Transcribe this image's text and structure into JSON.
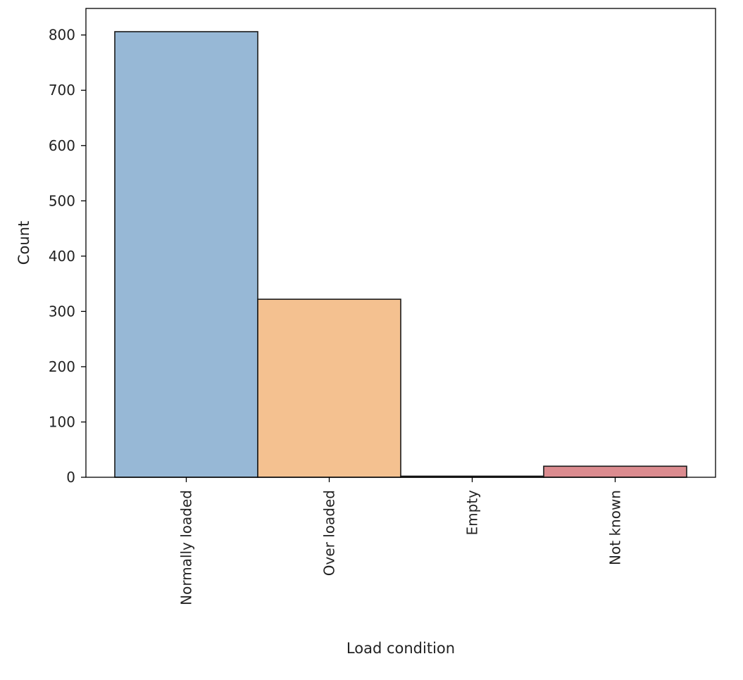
{
  "chart_data": {
    "type": "bar",
    "title": "",
    "xlabel": "Load condition",
    "ylabel": "Count",
    "categories": [
      "Normally loaded",
      "Over loaded",
      "Empty",
      "Not known"
    ],
    "values": [
      806,
      322,
      2,
      20
    ],
    "colors": [
      "#97b8d6",
      "#f4c190",
      "#cccccc",
      "#db8b8f"
    ],
    "ylim": [
      0,
      848
    ],
    "yticks": [
      0,
      100,
      200,
      300,
      400,
      500,
      600,
      700,
      800
    ],
    "grid": false,
    "legend": "none"
  }
}
